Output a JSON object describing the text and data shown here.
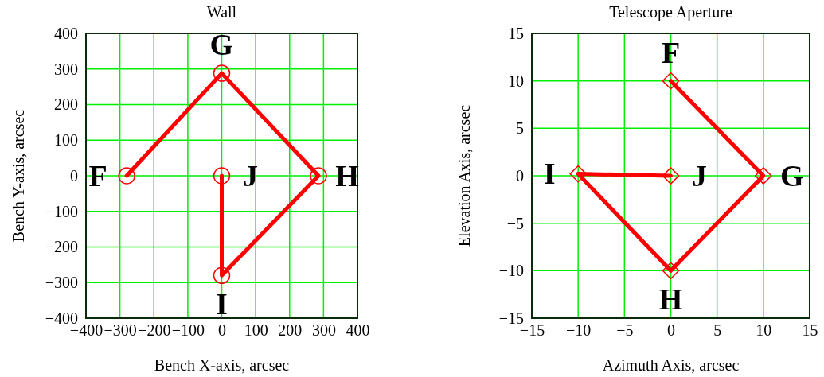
{
  "chart_data": [
    {
      "type": "line",
      "title": "Wall",
      "xlabel": "Bench X-axis, arcsec",
      "ylabel": "Bench Y-axis, arcsec",
      "xlim": [
        -400,
        400
      ],
      "ylim": [
        -400,
        400
      ],
      "xticks": [
        -400,
        -300,
        -200,
        -100,
        0,
        100,
        200,
        300,
        400
      ],
      "yticks": [
        -400,
        -300,
        -200,
        -100,
        0,
        100,
        200,
        300,
        400
      ],
      "grid": true,
      "marker": "circle",
      "series": [
        {
          "color": "#ff0000",
          "x": [
            -280,
            0,
            285,
            0,
            0
          ],
          "values": [
            0,
            288,
            0,
            -280,
            0
          ]
        }
      ],
      "annotations": [
        {
          "text": "F",
          "x": -280,
          "y": 0
        },
        {
          "text": "G",
          "x": 0,
          "y": 288
        },
        {
          "text": "H",
          "x": 285,
          "y": 0
        },
        {
          "text": "J",
          "x": 0,
          "y": 0
        },
        {
          "text": "I",
          "x": 0,
          "y": -280
        }
      ]
    },
    {
      "type": "line",
      "title": "Telescope Aperture",
      "xlabel": "Azimuth Axis, arcsec",
      "ylabel": "Elevation Axis, arcsec",
      "xlim": [
        -15,
        15
      ],
      "ylim": [
        -15,
        15
      ],
      "xticks": [
        -15,
        -10,
        -5,
        0,
        5,
        10,
        15
      ],
      "yticks": [
        -15,
        -10,
        -5,
        0,
        5,
        10,
        15
      ],
      "grid": true,
      "marker": "diamond",
      "series": [
        {
          "color": "#ff0000",
          "x": [
            0,
            -10,
            0,
            10,
            0
          ],
          "values": [
            0,
            0.2,
            -10,
            0,
            10
          ]
        }
      ],
      "annotations": [
        {
          "text": "F",
          "x": 0,
          "y": 10
        },
        {
          "text": "J",
          "x": 0,
          "y": 0
        },
        {
          "text": "G",
          "x": 10,
          "y": 0
        },
        {
          "text": "I",
          "x": -10,
          "y": 0.2
        },
        {
          "text": "H",
          "x": 0,
          "y": -10
        }
      ]
    }
  ]
}
